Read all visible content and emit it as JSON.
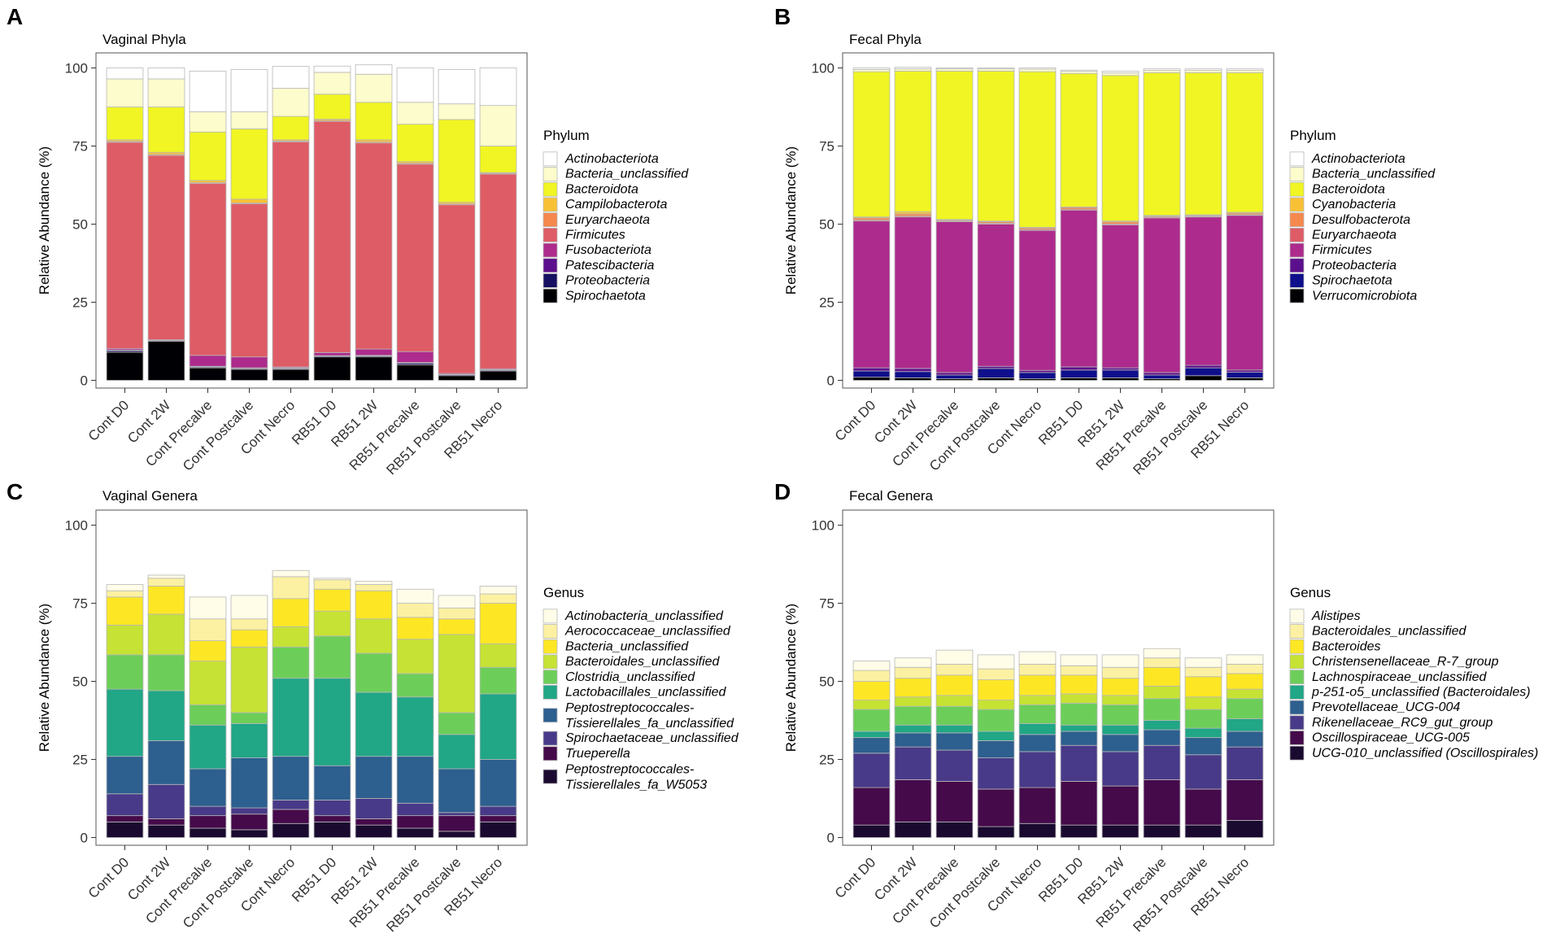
{
  "chart_data": [
    {
      "id": "A",
      "type": "bar",
      "stacked": true,
      "panel_label": "A",
      "title": "Vaginal Phyla",
      "xlabel": "",
      "ylabel": "Relative Abundance (%)",
      "ylim": [
        0,
        100
      ],
      "yticks": [
        "0",
        "25",
        "50",
        "75",
        "100"
      ],
      "legend_title": "Phylum",
      "categories": [
        "Cont D0",
        "Cont 2W",
        "Cont Precalve",
        "Cont Postcalve",
        "Cont Necro",
        "RB51 D0",
        "RB51 2W",
        "RB51 Precalve",
        "RB51 Postcalve",
        "RB51 Necro"
      ],
      "series": [
        {
          "name": "Spirochaetota",
          "color": "#000004",
          "values": [
            9,
            12.5,
            4,
            3.5,
            3.5,
            7.5,
            7.5,
            5,
            1.5,
            3
          ]
        },
        {
          "name": "Proteobacteria",
          "color": "#170f61",
          "values": [
            0.5,
            0.3,
            0.3,
            0.3,
            0.3,
            0.3,
            0.3,
            0.5,
            0.3,
            0.3
          ]
        },
        {
          "name": "Patescibacteria",
          "color": "#5c0f8c",
          "values": [
            0.2,
            0.1,
            0.2,
            0.2,
            0.2,
            0.1,
            0.2,
            0.2,
            0.1,
            0.1
          ]
        },
        {
          "name": "Fusobacteriota",
          "color": "#ad2b8c",
          "values": [
            0.5,
            0.1,
            3.5,
            3.5,
            0.3,
            1,
            2,
            3.5,
            0.3,
            0.3
          ]
        },
        {
          "name": "Firmicutes",
          "color": "#de5c66",
          "values": [
            66,
            59,
            55,
            49,
            72,
            74,
            66,
            60,
            54,
            62.3
          ]
        },
        {
          "name": "Euryarchaeota",
          "color": "#f5884d",
          "values": [
            0.3,
            0.3,
            0.3,
            0.3,
            0.3,
            0.3,
            0.3,
            0.3,
            0.3,
            0.3
          ]
        },
        {
          "name": "Campilobacterota",
          "color": "#f8c135",
          "values": [
            0.5,
            0.7,
            0.7,
            1.2,
            0.4,
            0.4,
            0.7,
            0.5,
            0.5,
            0.2
          ]
        },
        {
          "name": "Bacteroidota",
          "color": "#f0f523",
          "values": [
            10.5,
            14.5,
            15.5,
            22.5,
            7.5,
            8,
            12,
            12,
            26.5,
            8.5
          ]
        },
        {
          "name": "Bacteria_unclassified",
          "color": "#fcfccc",
          "values": [
            9,
            9,
            6.5,
            5.5,
            9,
            7,
            9,
            7,
            5,
            13
          ]
        },
        {
          "name": "Actinobacteriota",
          "color": "#ffffff",
          "values": [
            3.5,
            3.5,
            13,
            13.5,
            7,
            2,
            3,
            11,
            11,
            12
          ]
        }
      ]
    },
    {
      "id": "B",
      "type": "bar",
      "stacked": true,
      "panel_label": "B",
      "title": "Fecal Phyla",
      "xlabel": "",
      "ylabel": "Relative Abundance (%)",
      "ylim": [
        0,
        100
      ],
      "yticks": [
        "0",
        "25",
        "50",
        "75",
        "100"
      ],
      "legend_title": "Phylum",
      "categories": [
        "Cont D0",
        "Cont 2W",
        "Cont Precalve",
        "Cont Postcalve",
        "Cont Necro",
        "RB51 D0",
        "RB51 2W",
        "RB51 Precalve",
        "RB51 Postcalve",
        "RB51 Necro"
      ],
      "series": [
        {
          "name": "Verrucomicrobiota",
          "color": "#000004",
          "values": [
            1,
            0.8,
            0.5,
            0.8,
            0.5,
            0.8,
            0.8,
            0.5,
            1.5,
            0.8
          ]
        },
        {
          "name": "Spirochaetota",
          "color": "#0f0f8c",
          "values": [
            2,
            2,
            1.2,
            3,
            2,
            2.5,
            2.5,
            1.2,
            2.5,
            1.8
          ]
        },
        {
          "name": "Proteobacteria",
          "color": "#5c0f8c",
          "values": [
            1,
            1,
            0.8,
            0.7,
            0.7,
            1,
            0.7,
            0.8,
            0.8,
            0.7
          ]
        },
        {
          "name": "Firmicutes",
          "color": "#ad2b8c",
          "values": [
            47,
            48.5,
            48.3,
            45.5,
            44.8,
            50.2,
            45.8,
            49.5,
            47.5,
            49.5
          ]
        },
        {
          "name": "Euryarchaeota",
          "color": "#de5c66",
          "values": [
            0.3,
            0.3,
            0.2,
            0.3,
            0.3,
            0.3,
            0.2,
            0.3,
            0.2,
            0.2
          ]
        },
        {
          "name": "Desulfobacterota",
          "color": "#f5884d",
          "values": [
            0.7,
            0.7,
            0.3,
            0.5,
            0.5,
            0.6,
            0.7,
            0.3,
            0.3,
            0.5
          ]
        },
        {
          "name": "Cyanobacteria",
          "color": "#f8c135",
          "values": [
            0.3,
            0.7,
            0.2,
            0.2,
            0.2,
            0.1,
            0.3,
            0.2,
            0.2,
            0.3
          ]
        },
        {
          "name": "Bacteroidota",
          "color": "#f0f523",
          "values": [
            46.5,
            45,
            47.5,
            48,
            49.8,
            42.7,
            46.6,
            45.7,
            45.5,
            44.7
          ]
        },
        {
          "name": "Bacteria_unclassified",
          "color": "#fcfccc",
          "values": [
            0.7,
            0.7,
            0.7,
            0.7,
            0.8,
            0.7,
            0.8,
            0.7,
            0.7,
            0.7
          ]
        },
        {
          "name": "Actinobacteriota",
          "color": "#ffffff",
          "values": [
            0.5,
            0.5,
            0.3,
            0.3,
            0.4,
            0.4,
            0.6,
            0.5,
            0.5,
            0.5
          ]
        }
      ]
    },
    {
      "id": "C",
      "type": "bar",
      "stacked": true,
      "panel_label": "C",
      "title": "Vaginal Genera",
      "xlabel": "",
      "ylabel": "Relative Abundance (%)",
      "ylim": [
        0,
        100
      ],
      "yticks": [
        "0",
        "25",
        "50",
        "75",
        "100"
      ],
      "legend_title": "Genus",
      "categories": [
        "Cont D0",
        "Cont 2W",
        "Cont Precalve",
        "Cont Postcalve",
        "Cont Necro",
        "RB51 D0",
        "RB51 2W",
        "RB51 Precalve",
        "RB51 Postcalve",
        "RB51 Necro"
      ],
      "series": [
        {
          "name": "Peptostreptococcales-Tissierellales_fa_W5053",
          "lines": [
            "Peptostreptococcales-",
            "Tissierellales_fa_W5053"
          ],
          "color": "#1a0a30",
          "values": [
            5,
            4,
            3,
            2.5,
            4.5,
            5,
            4,
            3,
            2,
            5
          ]
        },
        {
          "name": "Trueperella",
          "color": "#450a4a",
          "values": [
            2,
            2,
            4,
            5,
            4.5,
            2,
            2,
            4,
            5,
            2
          ]
        },
        {
          "name": "Spirochaetaceae_unclassified",
          "color": "#483a88",
          "values": [
            7,
            11,
            3,
            2,
            3,
            5,
            6.5,
            4,
            1,
            3
          ]
        },
        {
          "name": "Peptostreptococcales-Tissierellales_fa_unclassified",
          "lines": [
            "Peptostreptococcales-",
            "Tissierellales_fa_unclassified"
          ],
          "color": "#2d5f8f",
          "values": [
            12,
            14,
            12,
            16,
            14,
            11,
            13.5,
            15,
            14,
            15
          ]
        },
        {
          "name": "Lactobacillales_unclassified",
          "color": "#21a686",
          "values": [
            21.5,
            16,
            14,
            11,
            25,
            28,
            20.5,
            19,
            11,
            21
          ]
        },
        {
          "name": "Clostridia_unclassified",
          "color": "#6cce59",
          "values": [
            11,
            11.5,
            6.5,
            3.5,
            10,
            13.5,
            12.5,
            7.5,
            7,
            8.5
          ]
        },
        {
          "name": "Bacteroidales_unclassified",
          "color": "#c6e234",
          "values": [
            9.5,
            13,
            14,
            21,
            6.5,
            8,
            11,
            11,
            25,
            7.5
          ]
        },
        {
          "name": "Bacteria_unclassified",
          "color": "#fde725",
          "values": [
            9,
            9,
            6.5,
            5.5,
            9,
            7,
            9,
            7,
            5,
            13
          ]
        },
        {
          "name": "Aerococcaceae_unclassified",
          "color": "#fcf1a2",
          "values": [
            2,
            2.5,
            7,
            3.5,
            7,
            3,
            2,
            4.5,
            3.5,
            3
          ]
        },
        {
          "name": "Actinobacteria_unclassified",
          "color": "#fffde8",
          "values": [
            2,
            1,
            7,
            7.5,
            2,
            0.5,
            1,
            4.5,
            4,
            2.5
          ]
        }
      ]
    },
    {
      "id": "D",
      "type": "bar",
      "stacked": true,
      "panel_label": "D",
      "title": "Fecal Genera",
      "xlabel": "",
      "ylabel": "Relative Abundance (%)",
      "ylim": [
        0,
        100
      ],
      "yticks": [
        "0",
        "25",
        "50",
        "75",
        "100"
      ],
      "legend_title": "Genus",
      "categories": [
        "Cont D0",
        "Cont 2W",
        "Cont Precalve",
        "Cont Postcalve",
        "Cont Necro",
        "RB51 D0",
        "RB51 2W",
        "RB51 Precalve",
        "RB51 Postcalve",
        "RB51 Necro"
      ],
      "series": [
        {
          "name": "UCG-010_unclassified (Oscillospirales)",
          "color": "#1a0a30",
          "values": [
            4,
            5,
            5,
            3.5,
            4.5,
            4,
            4,
            4,
            4,
            5.5
          ]
        },
        {
          "name": "Oscillospiraceae_UCG-005",
          "color": "#450a4a",
          "values": [
            12,
            13.5,
            13,
            12,
            11.5,
            14,
            12.5,
            14.5,
            11.5,
            13
          ]
        },
        {
          "name": "Rikenellaceae_RC9_gut_group",
          "color": "#483a88",
          "values": [
            11,
            10.5,
            10,
            10,
            11.5,
            11.5,
            11,
            11,
            11,
            10.5
          ]
        },
        {
          "name": "Prevotellaceae_UCG-004",
          "color": "#2d5f8f",
          "values": [
            5,
            4.5,
            5.5,
            5.5,
            5.5,
            4.5,
            5.5,
            5,
            5.5,
            5
          ]
        },
        {
          "name": "p-251-o5_unclassified (Bacteroidales)",
          "color": "#21a686",
          "values": [
            2,
            2.5,
            2.5,
            3,
            3.5,
            2,
            3,
            3,
            3,
            4
          ]
        },
        {
          "name": "Lachnospiraceae_unclassified",
          "color": "#6cce59",
          "values": [
            7,
            6,
            6,
            7,
            6,
            7,
            6.5,
            7,
            6,
            6.5
          ]
        },
        {
          "name": "Christensenellaceae_R-7_group",
          "color": "#c6e234",
          "values": [
            3,
            3,
            3.5,
            3,
            3,
            3,
            3,
            4,
            4,
            3
          ]
        },
        {
          "name": "Bacteroides",
          "color": "#fde725",
          "values": [
            6,
            6,
            6.5,
            6.5,
            6.5,
            6,
            5.5,
            6,
            6.5,
            5
          ]
        },
        {
          "name": "Bacteroidales_unclassified",
          "color": "#fcf1a2",
          "values": [
            3.5,
            3.5,
            3.5,
            3.5,
            3.5,
            3,
            3.5,
            3,
            3,
            3
          ]
        },
        {
          "name": "Alistipes",
          "color": "#fffde8",
          "values": [
            3,
            3,
            4.5,
            4.5,
            4,
            3.5,
            4,
            3,
            3,
            3
          ]
        }
      ]
    }
  ]
}
